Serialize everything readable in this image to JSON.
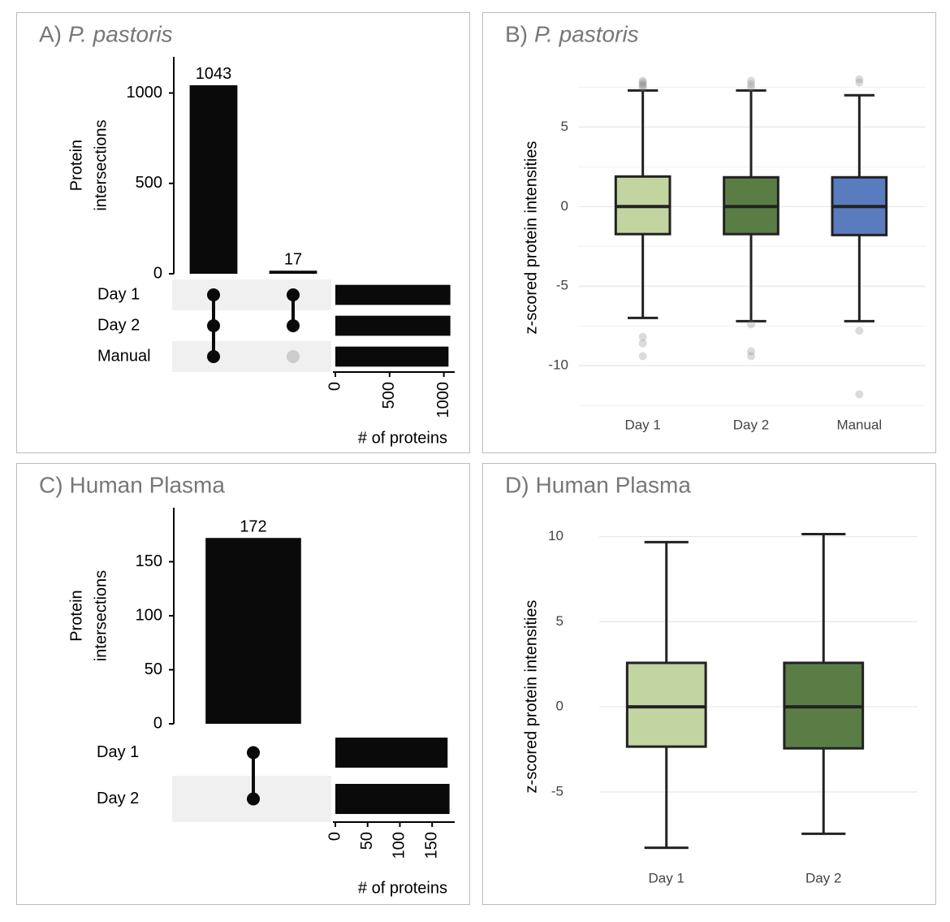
{
  "chart_data": [
    {
      "type": "upset",
      "panel_label": "A)",
      "title": "P. pastoris",
      "title_italic": true,
      "intersection_values": [
        1043,
        17
      ],
      "intersection_sets": [
        [
          0,
          1,
          2
        ],
        [
          0,
          1
        ]
      ],
      "sets": [
        "Day 1",
        "Day 2",
        "Manual"
      ],
      "set_sizes": [
        1060,
        1060,
        1043
      ],
      "ylabel": [
        "Protein",
        "intersections"
      ],
      "ylim": [
        0,
        1200
      ],
      "yticks": [
        0,
        500,
        1000
      ],
      "xlabel": "# of proteins",
      "xlim": [
        0,
        1100
      ],
      "xticks": [
        0,
        500,
        1000
      ],
      "color": "#0a0a0a",
      "empty_color": "#cccccc",
      "shade_color": "#f0f0f0"
    },
    {
      "type": "box",
      "panel_label": "B)",
      "title": "P. pastoris",
      "title_italic": true,
      "categories": [
        "Day 1",
        "Day 2",
        "Manual"
      ],
      "colors": [
        "#c2d4a0",
        "#5a7d45",
        "#5b7bbf"
      ],
      "whisker_low": [
        -7.0,
        -7.2,
        -7.2
      ],
      "q1": [
        -1.73,
        -1.73,
        -1.79
      ],
      "median": [
        0,
        0,
        0
      ],
      "q3": [
        1.89,
        1.84,
        1.84
      ],
      "whisker_high": [
        7.3,
        7.3,
        7.0
      ],
      "outliers": [
        [
          7.5,
          7.6,
          7.7,
          7.8,
          7.9,
          -8.2,
          -8.6,
          -9.4
        ],
        [
          7.5,
          7.7,
          7.9,
          -7.4,
          -9.1,
          -9.4
        ],
        [
          7.8,
          8.0,
          -7.8,
          -11.8
        ]
      ],
      "ylabel": "z-scored protein intensities",
      "ylim": [
        -12.8,
        8.9
      ],
      "yticks": [
        -10,
        -5,
        0,
        5
      ],
      "minor_yticks": [
        -12.5,
        -7.5,
        -2.5,
        2.5,
        7.5
      ],
      "grid": true
    },
    {
      "type": "upset",
      "panel_label": "C)",
      "title": "Human Plasma",
      "title_italic": false,
      "intersection_values": [
        172
      ],
      "intersection_sets": [
        [
          0,
          1
        ]
      ],
      "sets": [
        "Day 1",
        "Day 2"
      ],
      "set_sizes": [
        174,
        177
      ],
      "ylabel": [
        "Protein",
        "intersections"
      ],
      "ylim": [
        0,
        200
      ],
      "yticks": [
        0,
        50,
        100,
        150
      ],
      "xlabel": "# of proteins",
      "xlim": [
        0,
        185
      ],
      "xticks": [
        0,
        50,
        100,
        150
      ],
      "color": "#0a0a0a",
      "empty_color": "#cccccc",
      "shade_color": "#f0f0f0"
    },
    {
      "type": "box",
      "panel_label": "D)",
      "title": "Human Plasma",
      "title_italic": false,
      "categories": [
        "Day 1",
        "Day 2"
      ],
      "colors": [
        "#c2d4a0",
        "#5a7d45"
      ],
      "whisker_low": [
        -8.28,
        -7.46
      ],
      "q1": [
        -2.34,
        -2.44
      ],
      "median": [
        0,
        0
      ],
      "q3": [
        2.58,
        2.58
      ],
      "whisker_high": [
        9.67,
        10.14
      ],
      "ylabel": "z-scored protein intensities",
      "ylim": [
        -9.3,
        10.5
      ],
      "yticks": [
        -5,
        0,
        5,
        10
      ],
      "grid": true
    }
  ]
}
